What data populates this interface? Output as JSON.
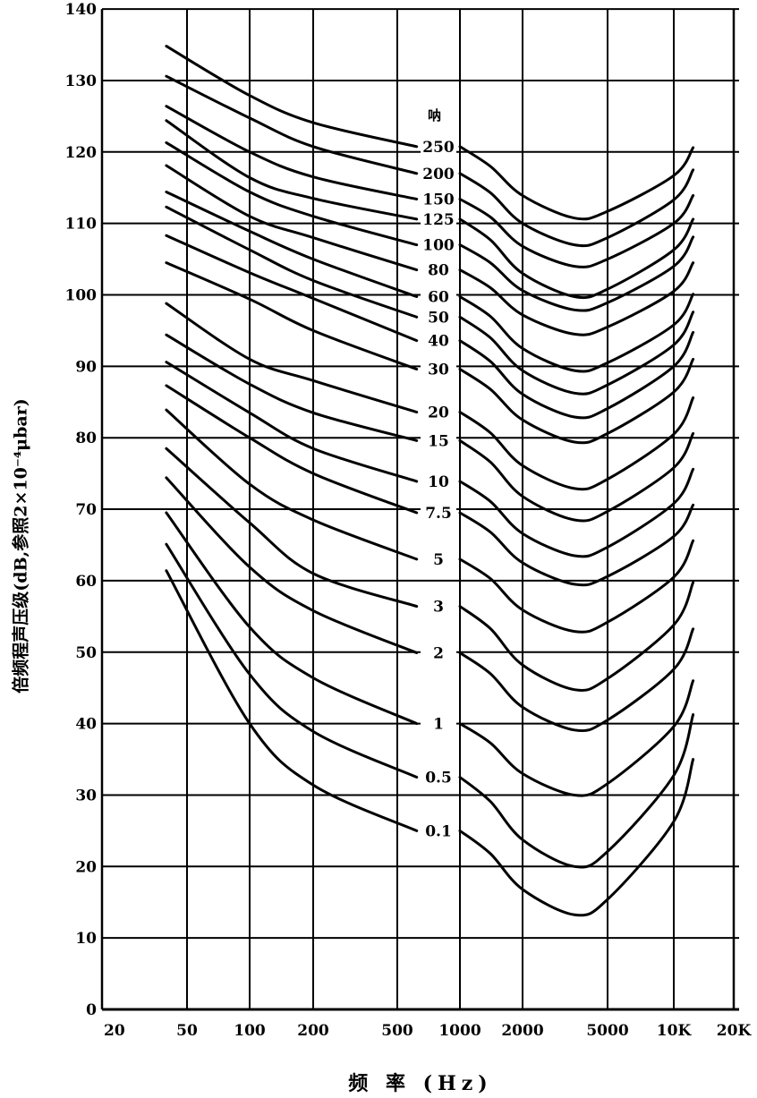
{
  "chart_data": {
    "type": "line",
    "title": "",
    "xlabel": "频 率 (Hz)",
    "ylabel": "倍频程声压级(dB,参照2×10⁻⁴μbar)",
    "series_unit": "呐",
    "xscale": "log (octave bands)",
    "xlim": [
      20,
      20000
    ],
    "ylim": [
      0,
      140
    ],
    "grid": true,
    "x_ticks": [
      20,
      50,
      100,
      200,
      500,
      1000,
      2000,
      5000,
      10000,
      20000
    ],
    "x_tick_labels": [
      "20",
      "50",
      "100",
      "200",
      "500",
      "1000",
      "2000",
      "5000",
      "10K",
      "20K"
    ],
    "y_ticks": [
      0,
      10,
      20,
      30,
      40,
      50,
      60,
      70,
      80,
      90,
      100,
      110,
      120,
      130,
      140
    ],
    "y_tick_labels": [
      "0",
      "10",
      "20",
      "30",
      "40",
      "50",
      "60",
      "70",
      "80",
      "90",
      "100",
      "110",
      "120",
      "130",
      "140"
    ],
    "left_x": [
      40,
      100,
      200,
      620
    ],
    "right_x": [
      1000,
      1400,
      2000,
      3500,
      5000,
      10000,
      12500
    ],
    "series": [
      {
        "name": "250",
        "left": [
          134.8,
          127.9,
          124.1,
          120.75
        ],
        "right": [
          120.75,
          118,
          113.9,
          110.75,
          111.7,
          116.7,
          120.6
        ]
      },
      {
        "name": "200",
        "left": [
          130.6,
          124.75,
          120.75,
          117
        ],
        "right": [
          117,
          114.3,
          110,
          107,
          108,
          113.3,
          117.5
        ]
      },
      {
        "name": "150",
        "left": [
          126.4,
          120,
          116.5,
          113.4
        ],
        "right": [
          113.4,
          110.9,
          106.8,
          104,
          105,
          110,
          113.9
        ]
      },
      {
        "name": "125",
        "left": [
          124.4,
          116.4,
          113.5,
          110.6
        ],
        "right": [
          110.6,
          107.7,
          103,
          99.75,
          100.8,
          106.3,
          110.6
        ]
      },
      {
        "name": "100",
        "left": [
          121.3,
          114.4,
          111,
          107
        ],
        "right": [
          107,
          104.5,
          100.6,
          97.9,
          98.9,
          104,
          108.1
        ]
      },
      {
        "name": "80",
        "left": [
          118.1,
          111,
          108,
          103.5
        ],
        "right": [
          103.5,
          101,
          97.2,
          94.5,
          95.5,
          100.5,
          104.5
        ]
      },
      {
        "name": "60",
        "left": [
          114.4,
          108.9,
          105,
          99.75
        ],
        "right": [
          99.75,
          97,
          92.5,
          89.4,
          90.5,
          95.8,
          100.1
        ]
      },
      {
        "name": "50",
        "left": [
          112.3,
          106.3,
          102,
          96.9
        ],
        "right": [
          96.9,
          94,
          89.4,
          86.25,
          87.4,
          93,
          97.6
        ]
      },
      {
        "name": "40",
        "left": [
          108.3,
          103.1,
          99.5,
          93.6
        ],
        "right": [
          93.6,
          90.7,
          86.1,
          82.9,
          84.1,
          90,
          94.75
        ]
      },
      {
        "name": "30",
        "left": [
          104.5,
          99.4,
          95,
          89.6
        ],
        "right": [
          89.6,
          86.8,
          82.5,
          79.4,
          80.6,
          86.4,
          91
        ]
      },
      {
        "name": "20",
        "left": [
          98.8,
          91,
          88,
          83.6
        ],
        "right": [
          83.6,
          80.7,
          76.1,
          72.9,
          74.2,
          80.5,
          85.6
        ]
      },
      {
        "name": "15",
        "left": [
          94.4,
          87.5,
          83.5,
          79.6
        ],
        "right": [
          79.6,
          76.6,
          71.8,
          68.5,
          69.7,
          75.8,
          80.6
        ]
      },
      {
        "name": "10",
        "left": [
          90.6,
          83.5,
          78.5,
          73.9
        ],
        "right": [
          73.9,
          71.1,
          66.6,
          63.5,
          64.7,
          70.8,
          75.6
        ]
      },
      {
        "name": "7.5",
        "left": [
          87.3,
          80,
          75,
          69.5
        ],
        "right": [
          69.5,
          66.8,
          62.5,
          59.5,
          60.6,
          66.2,
          70.6
        ]
      },
      {
        "name": "5",
        "left": [
          83.9,
          73.5,
          68.5,
          63
        ],
        "right": [
          63,
          60.3,
          55.9,
          52.9,
          54.2,
          60.5,
          65.6
        ]
      },
      {
        "name": "3",
        "left": [
          78.5,
          68.1,
          61,
          56.4
        ],
        "right": [
          56.4,
          53.3,
          48.2,
          44.75,
          46.3,
          53.8,
          59.75
        ]
      },
      {
        "name": "2",
        "left": [
          74.4,
          61.9,
          55.8,
          49.9
        ],
        "right": [
          49.9,
          47,
          42.3,
          39.1,
          40.5,
          47.6,
          53.25
        ]
      },
      {
        "name": "1",
        "left": [
          69.5,
          53.5,
          46.4,
          40
        ],
        "right": [
          40,
          37.3,
          33,
          30,
          31.6,
          39.6,
          46
        ]
      },
      {
        "name": "0.5",
        "left": [
          65.1,
          46.9,
          38.9,
          32.5
        ],
        "right": [
          32.5,
          29.1,
          23.75,
          20,
          22.1,
          32.75,
          41.25
        ]
      },
      {
        "name": "0.1",
        "left": [
          61.4,
          40,
          31.4,
          25
        ],
        "right": [
          25,
          21.8,
          16.8,
          13.25,
          15.4,
          26.3,
          35
        ]
      }
    ]
  }
}
